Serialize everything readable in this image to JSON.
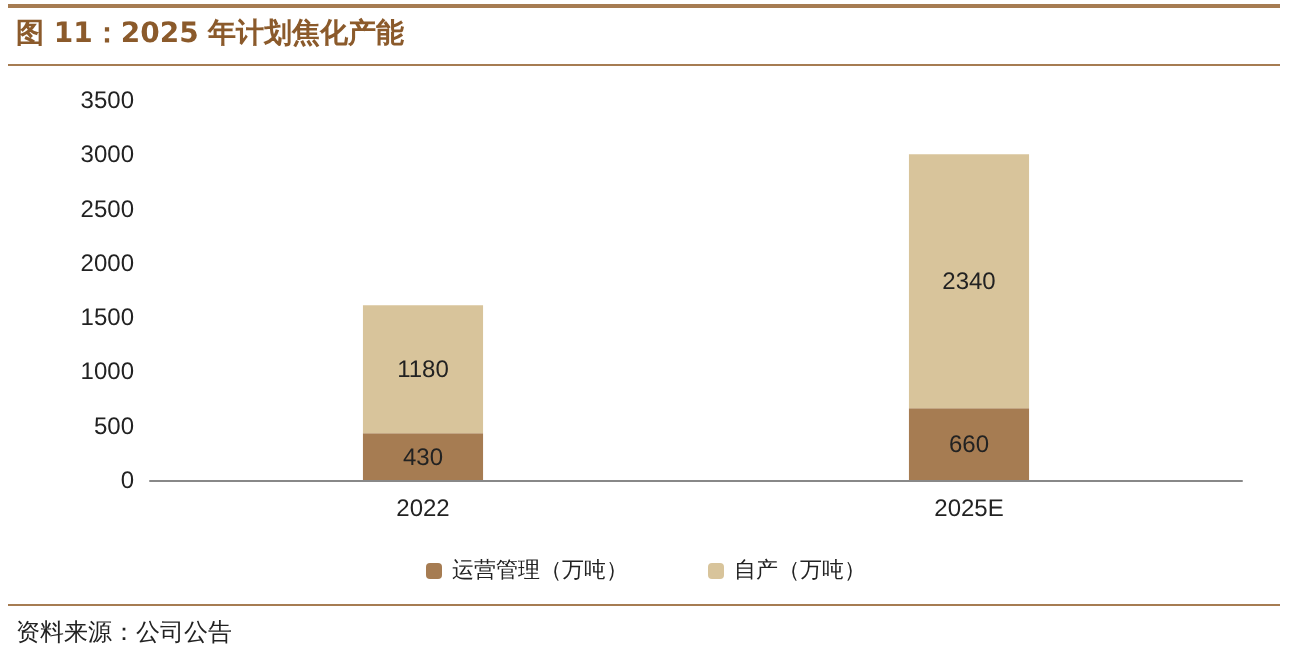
{
  "chart_data": {
    "type": "bar",
    "title": "图 11：2025 年计划焦化产能",
    "categories": [
      "2022",
      "2025E"
    ],
    "stacked": true,
    "series": [
      {
        "name": "运营管理（万吨）",
        "color": "#a67c52",
        "values": [
          430,
          660
        ]
      },
      {
        "name": "自产（万吨）",
        "color": "#d8c49b",
        "values": [
          1180,
          2340
        ]
      }
    ],
    "ylim": [
      0,
      3500
    ],
    "yticks": [
      0,
      500,
      1000,
      1500,
      2000,
      2500,
      3000,
      3500
    ],
    "grid": false,
    "legend": "bottom",
    "data_labels": true,
    "annotations": [
      "资料来源：公司公告"
    ]
  }
}
